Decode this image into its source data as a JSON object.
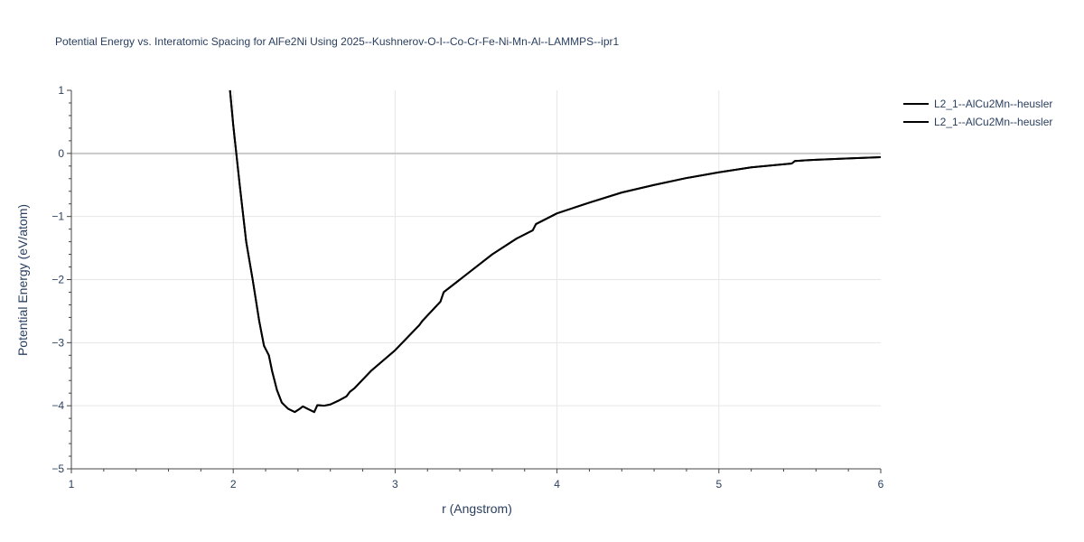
{
  "chart_data": {
    "type": "line",
    "title": "Potential Energy vs. Interatomic Spacing for AlFe2Ni Using 2025--Kushnerov-O-I--Co-Cr-Fe-Ni-Mn-Al--LAMMPS--ipr1",
    "xlabel": "r (Angstrom)",
    "ylabel": "Potential Energy (eV/atom)",
    "xlim": [
      1,
      6
    ],
    "ylim": [
      -5,
      1
    ],
    "x_ticks": [
      1,
      2,
      3,
      4,
      5,
      6
    ],
    "x_tick_labels": [
      "1",
      "2",
      "3",
      "4",
      "5",
      "6"
    ],
    "y_ticks": [
      1,
      0,
      -1,
      -2,
      -3,
      -4,
      -5
    ],
    "y_tick_labels": [
      "1",
      "0",
      "−1",
      "−2",
      "−3",
      "−4",
      "−5"
    ],
    "grid": true,
    "legend_position": "top-right",
    "colors": {
      "line": "#000000",
      "grid": "#e6e6e6",
      "zeroline": "#c8c8c8",
      "text": "#2a3f5f"
    },
    "series": [
      {
        "name": "L2_1--AlCu2Mn--heusler",
        "x": [
          1.98,
          2.0,
          2.04,
          2.08,
          2.12,
          2.16,
          2.19,
          2.22,
          2.24,
          2.27,
          2.3,
          2.34,
          2.38,
          2.41,
          2.43,
          2.46,
          2.5,
          2.52,
          2.56,
          2.6,
          2.65,
          2.7,
          2.72,
          2.75,
          2.85,
          3.0,
          3.15,
          3.17,
          3.28,
          3.3,
          3.45,
          3.6,
          3.75,
          3.85,
          3.87,
          4.0,
          4.2,
          4.4,
          4.6,
          4.8,
          5.0,
          5.2,
          5.45,
          5.47,
          5.6,
          5.8,
          6.0
        ],
        "y": [
          1.0,
          0.45,
          -0.5,
          -1.4,
          -2.0,
          -2.65,
          -3.05,
          -3.2,
          -3.45,
          -3.75,
          -3.95,
          -4.05,
          -4.1,
          -4.05,
          -4.01,
          -4.05,
          -4.1,
          -3.99,
          -4.0,
          -3.98,
          -3.92,
          -3.85,
          -3.78,
          -3.72,
          -3.45,
          -3.12,
          -2.72,
          -2.65,
          -2.35,
          -2.2,
          -1.9,
          -1.6,
          -1.35,
          -1.22,
          -1.12,
          -0.95,
          -0.78,
          -0.62,
          -0.5,
          -0.39,
          -0.3,
          -0.22,
          -0.16,
          -0.12,
          -0.1,
          -0.08,
          -0.06
        ]
      },
      {
        "name": "L2_1--AlCu2Mn--heusler",
        "x": [
          1.98,
          2.0,
          2.04,
          2.08,
          2.12,
          2.16,
          2.19,
          2.22,
          2.24,
          2.27,
          2.3,
          2.34,
          2.38,
          2.41,
          2.43,
          2.46,
          2.5,
          2.52,
          2.56,
          2.6,
          2.65,
          2.7,
          2.72,
          2.75,
          2.85,
          3.0,
          3.15,
          3.17,
          3.28,
          3.3,
          3.45,
          3.6,
          3.75,
          3.85,
          3.87,
          4.0,
          4.2,
          4.4,
          4.6,
          4.8,
          5.0,
          5.2,
          5.45,
          5.47,
          5.6,
          5.8,
          6.0
        ],
        "y": [
          1.0,
          0.45,
          -0.5,
          -1.4,
          -2.0,
          -2.65,
          -3.05,
          -3.2,
          -3.45,
          -3.75,
          -3.95,
          -4.05,
          -4.1,
          -4.05,
          -4.01,
          -4.05,
          -4.1,
          -3.99,
          -4.0,
          -3.98,
          -3.92,
          -3.85,
          -3.78,
          -3.72,
          -3.45,
          -3.12,
          -2.72,
          -2.65,
          -2.35,
          -2.2,
          -1.9,
          -1.6,
          -1.35,
          -1.22,
          -1.12,
          -0.95,
          -0.78,
          -0.62,
          -0.5,
          -0.39,
          -0.3,
          -0.22,
          -0.16,
          -0.12,
          -0.1,
          -0.08,
          -0.06
        ]
      }
    ]
  }
}
